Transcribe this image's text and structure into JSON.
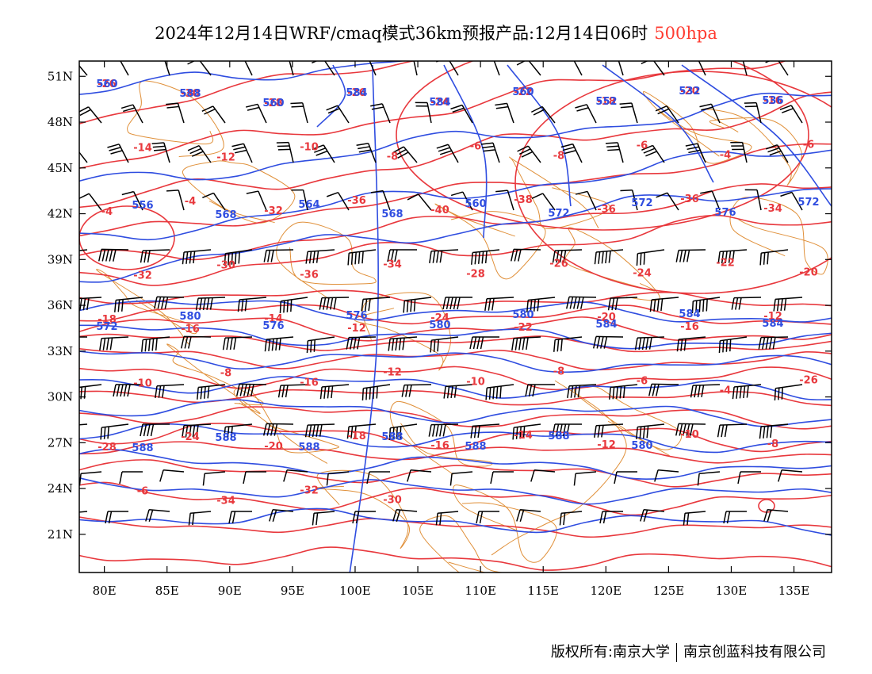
{
  "title": {
    "main": "2024年12月14日WRF/cmaq模式36km预报产品:12月14日06时",
    "level": "500hpa"
  },
  "colors": {
    "height_contour": "#2f4de0",
    "temperature_contour": "#e8383d",
    "wind_barb": "#000000",
    "boundary": "#e0903a",
    "frame": "#000000"
  },
  "map_data": {
    "projection": "lat-lon",
    "lon_range": [
      78,
      138
    ],
    "lat_range": [
      18.5,
      52
    ],
    "lon_ticks": [
      80,
      85,
      90,
      95,
      100,
      105,
      110,
      115,
      120,
      125,
      130,
      135
    ],
    "lat_ticks": [
      21,
      24,
      27,
      30,
      33,
      36,
      39,
      42,
      45,
      48,
      51
    ],
    "lon_labels": [
      "80E",
      "85E",
      "90E",
      "95E",
      "100E",
      "105E",
      "110E",
      "115E",
      "120E",
      "125E",
      "130E",
      "135E"
    ],
    "lat_labels": [
      "21N",
      "24N",
      "27N",
      "30N",
      "33N",
      "36N",
      "39N",
      "42N",
      "45N",
      "48N",
      "51N"
    ],
    "height_labels": [
      "560",
      "588",
      "560",
      "584",
      "584",
      "560",
      "552",
      "532",
      "536",
      "556",
      "568",
      "564",
      "568",
      "560",
      "572",
      "572",
      "576",
      "572",
      "572",
      "580",
      "576",
      "576",
      "580",
      "580",
      "584",
      "584",
      "584",
      "588",
      "588",
      "588",
      "588",
      "588",
      "588",
      "580"
    ],
    "temperature_labels": [
      "-26",
      "-30",
      "-28",
      "-26",
      "-24",
      "-22",
      "-18",
      "-20",
      "-16",
      "-14",
      "-12",
      "-10",
      "-8",
      "-6",
      "-8",
      "-6",
      "-4",
      "-6",
      "-4",
      "-4",
      "-32",
      "-36",
      "-40",
      "-38",
      "-36",
      "-36",
      "-34",
      "-32",
      "-30",
      "-36",
      "-34",
      "-28",
      "-26",
      "-24",
      "-22",
      "-20",
      "-18",
      "-16",
      "-14",
      "-12",
      "-24",
      "-22",
      "-20",
      "-16",
      "-12",
      "-10",
      "-8",
      "-16",
      "-12",
      "-10",
      "-8",
      "-6",
      "-4",
      "-26",
      "-28",
      "-24",
      "-20",
      "-18",
      "-16",
      "-14",
      "-12",
      "-10",
      "-8",
      "-6",
      "-34",
      "-32",
      "-30"
    ],
    "wind_barb_field": "west-northwesterly jet, strongest between 30N and 38N"
  },
  "footer": {
    "copyright": "版权所有:南京大学",
    "company": "南京创蓝科技有限公司"
  }
}
